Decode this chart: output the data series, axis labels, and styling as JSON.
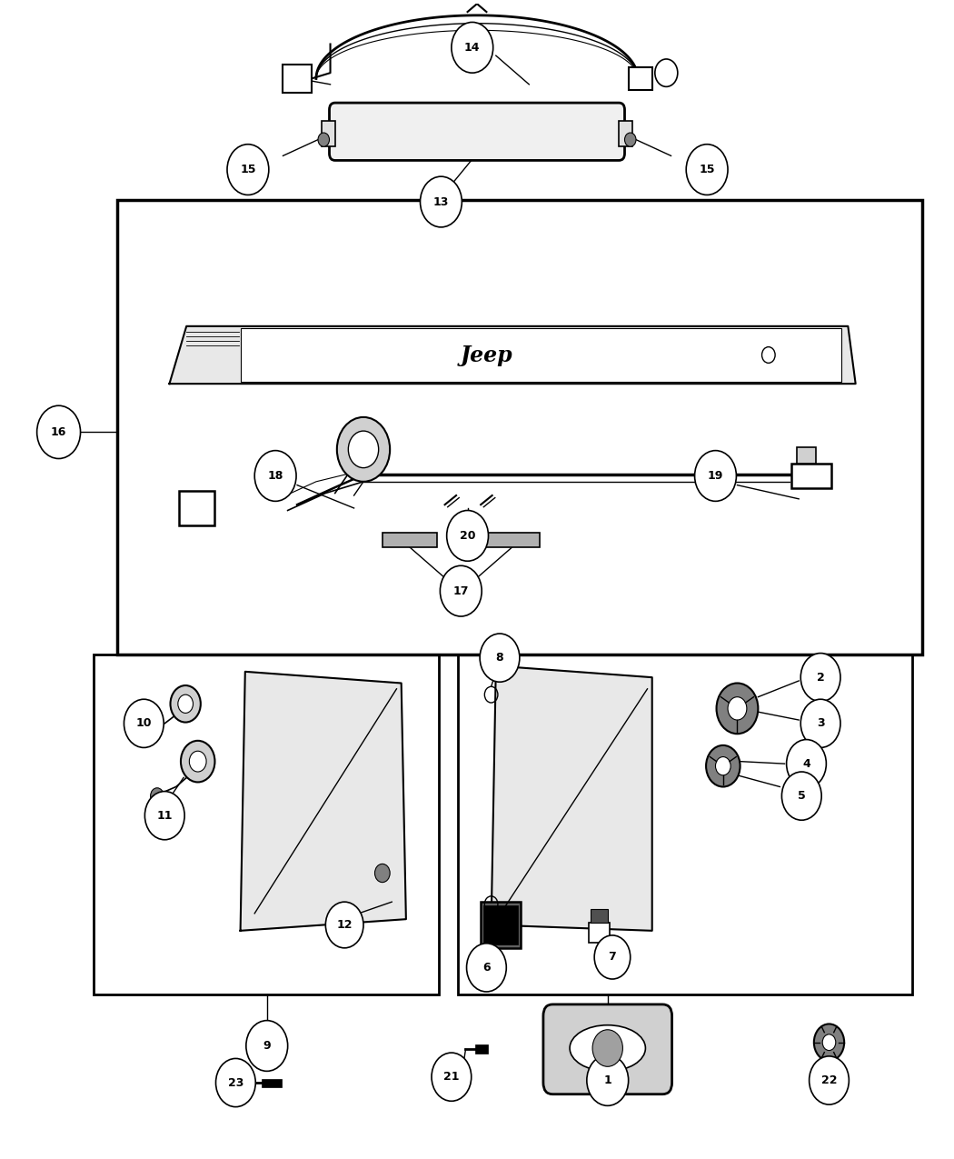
{
  "bg_color": "#ffffff",
  "line_color": "#000000",
  "fig_width": 10.5,
  "fig_height": 12.75,
  "dpi": 100
}
